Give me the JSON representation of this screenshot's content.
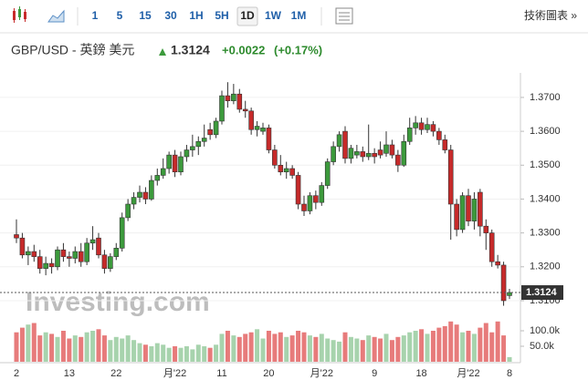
{
  "toolbar": {
    "intervals": [
      "1",
      "5",
      "15",
      "30",
      "1H",
      "5H",
      "1D",
      "1W",
      "1M"
    ],
    "selected": "1D",
    "advanced": "技術圖表 »"
  },
  "header": {
    "instrument": "GBP/USD - 英鎊 美元",
    "price": "1.3124",
    "change": "+0.0022",
    "change_pct": "(+0.17%)"
  },
  "chart_data": {
    "type": "candlestick",
    "watermark": "Investing.com",
    "up_color": "#3c9a3c",
    "down_color": "#c62a2a",
    "up_volume_color": "#a7d3ad",
    "down_volume_color": "#e77b7b",
    "categories": [
      "2",
      null,
      null,
      null,
      null,
      null,
      null,
      null,
      null,
      "13",
      null,
      null,
      null,
      null,
      null,
      null,
      null,
      "22",
      null,
      null,
      null,
      null,
      null,
      null,
      null,
      null,
      null,
      "月'22",
      null,
      null,
      null,
      null,
      null,
      null,
      null,
      "11",
      null,
      null,
      null,
      null,
      null,
      null,
      null,
      "20",
      null,
      null,
      null,
      null,
      null,
      null,
      null,
      null,
      "月'22",
      null,
      null,
      null,
      null,
      null,
      null,
      null,
      null,
      "9",
      null,
      null,
      null,
      null,
      null,
      null,
      null,
      "18",
      null,
      null,
      null,
      null,
      null,
      null,
      null,
      "月'22",
      null,
      null,
      null,
      null,
      null,
      null,
      "8"
    ],
    "open": [
      1.3295,
      1.3285,
      1.3235,
      1.3245,
      1.323,
      1.3195,
      1.321,
      1.32,
      1.325,
      1.323,
      1.3225,
      1.3245,
      1.3215,
      1.327,
      1.3285,
      1.3235,
      1.3195,
      1.323,
      1.3255,
      1.3345,
      1.3385,
      1.3405,
      1.342,
      1.34,
      1.3455,
      1.347,
      1.349,
      1.353,
      1.348,
      1.3525,
      1.3545,
      1.3555,
      1.357,
      1.3605,
      1.359,
      1.363,
      1.3705,
      1.369,
      1.371,
      1.3665,
      1.366,
      1.3605,
      1.36,
      1.361,
      1.3545,
      1.35,
      1.348,
      1.349,
      1.347,
      1.3385,
      1.3365,
      1.341,
      1.339,
      1.344,
      1.351,
      1.3555,
      1.36,
      1.352,
      1.353,
      1.354,
      1.3525,
      1.3535,
      1.3545,
      1.3535,
      1.356,
      1.353,
      1.35,
      1.357,
      1.361,
      1.3625,
      1.3605,
      1.362,
      1.36,
      1.3575,
      1.3545,
      1.3385,
      1.331,
      1.341,
      1.3335,
      1.342,
      1.332,
      1.33,
      1.3215,
      1.3205,
      1.3115
    ],
    "high": [
      1.334,
      1.33,
      1.326,
      1.3265,
      1.325,
      1.323,
      1.3225,
      1.326,
      1.327,
      1.3245,
      1.326,
      1.327,
      1.3285,
      1.332,
      1.33,
      1.325,
      1.324,
      1.327,
      1.336,
      1.34,
      1.342,
      1.344,
      1.3435,
      1.347,
      1.349,
      1.352,
      1.354,
      1.3545,
      1.354,
      1.356,
      1.359,
      1.3585,
      1.362,
      1.3625,
      1.364,
      1.372,
      1.3745,
      1.374,
      1.3725,
      1.369,
      1.367,
      1.363,
      1.3625,
      1.362,
      1.356,
      1.353,
      1.351,
      1.35,
      1.348,
      1.341,
      1.342,
      1.3425,
      1.345,
      1.352,
      1.357,
      1.36,
      1.3615,
      1.356,
      1.356,
      1.3555,
      1.362,
      1.355,
      1.357,
      1.36,
      1.3575,
      1.3545,
      1.359,
      1.364,
      1.3645,
      1.364,
      1.364,
      1.363,
      1.361,
      1.359,
      1.356,
      1.34,
      1.342,
      1.343,
      1.342,
      1.343,
      1.334,
      1.331,
      1.3235,
      1.3215,
      1.3135
    ],
    "low": [
      1.327,
      1.3225,
      1.3205,
      1.3215,
      1.318,
      1.3175,
      1.318,
      1.319,
      1.3215,
      1.32,
      1.321,
      1.32,
      1.3205,
      1.325,
      1.3225,
      1.318,
      1.3185,
      1.322,
      1.3245,
      1.3335,
      1.337,
      1.339,
      1.3385,
      1.3395,
      1.344,
      1.346,
      1.3475,
      1.3465,
      1.347,
      1.351,
      1.3525,
      1.353,
      1.3555,
      1.3575,
      1.358,
      1.362,
      1.367,
      1.368,
      1.3655,
      1.364,
      1.359,
      1.3585,
      1.359,
      1.3535,
      1.349,
      1.347,
      1.346,
      1.346,
      1.337,
      1.335,
      1.3355,
      1.337,
      1.338,
      1.343,
      1.35,
      1.354,
      1.3505,
      1.3505,
      1.352,
      1.351,
      1.3515,
      1.3505,
      1.352,
      1.3525,
      1.352,
      1.348,
      1.3495,
      1.356,
      1.359,
      1.359,
      1.3595,
      1.3585,
      1.356,
      1.3535,
      1.328,
      1.329,
      1.33,
      1.332,
      1.331,
      1.329,
      1.325,
      1.32,
      1.3195,
      1.3085,
      1.3105
    ],
    "close": [
      1.3285,
      1.3235,
      1.3245,
      1.323,
      1.3195,
      1.321,
      1.32,
      1.325,
      1.323,
      1.3225,
      1.3245,
      1.3215,
      1.327,
      1.328,
      1.3235,
      1.3195,
      1.323,
      1.3255,
      1.3345,
      1.3385,
      1.3405,
      1.342,
      1.34,
      1.3455,
      1.347,
      1.349,
      1.353,
      1.348,
      1.3525,
      1.3545,
      1.3555,
      1.357,
      1.358,
      1.359,
      1.363,
      1.3705,
      1.369,
      1.371,
      1.3665,
      1.366,
      1.3605,
      1.3615,
      1.361,
      1.3545,
      1.35,
      1.348,
      1.349,
      1.347,
      1.3385,
      1.3365,
      1.341,
      1.339,
      1.344,
      1.351,
      1.3555,
      1.359,
      1.352,
      1.355,
      1.354,
      1.3525,
      1.3535,
      1.3525,
      1.353,
      1.356,
      1.353,
      1.35,
      1.357,
      1.361,
      1.3625,
      1.3605,
      1.362,
      1.36,
      1.3575,
      1.3545,
      1.3385,
      1.331,
      1.341,
      1.3335,
      1.34,
      1.332,
      1.33,
      1.3215,
      1.3205,
      1.31,
      1.3124
    ],
    "volume": [
      95000,
      110000,
      120000,
      125000,
      85000,
      95000,
      90000,
      80000,
      100000,
      75000,
      85000,
      80000,
      95000,
      100000,
      105000,
      85000,
      70000,
      80000,
      75000,
      85000,
      70000,
      60000,
      55000,
      50000,
      60000,
      55000,
      45000,
      50000,
      45000,
      50000,
      40000,
      55000,
      50000,
      45000,
      55000,
      90000,
      100000,
      85000,
      80000,
      90000,
      95000,
      105000,
      75000,
      100000,
      90000,
      95000,
      80000,
      85000,
      100000,
      95000,
      85000,
      80000,
      90000,
      75000,
      70000,
      65000,
      95000,
      80000,
      75000,
      70000,
      85000,
      80000,
      75000,
      90000,
      70000,
      80000,
      85000,
      95000,
      100000,
      105000,
      90000,
      100000,
      110000,
      115000,
      130000,
      120000,
      95000,
      100000,
      90000,
      110000,
      125000,
      95000,
      130000,
      85000,
      15000
    ],
    "ylim": [
      1.3073,
      1.3759
    ],
    "yticks": [
      {
        "value": 1.31,
        "label": "1.3100"
      },
      {
        "value": 1.32,
        "label": "1.3200"
      },
      {
        "value": 1.33,
        "label": "1.3300"
      },
      {
        "value": 1.34,
        "label": "1.3400"
      },
      {
        "value": 1.35,
        "label": "1.3500"
      },
      {
        "value": 1.36,
        "label": "1.3600"
      },
      {
        "value": 1.37,
        "label": "1.3700"
      }
    ],
    "y2lim": [
      0,
      150000
    ],
    "y2ticks": [
      {
        "value": 50000,
        "label": "50.0k"
      },
      {
        "value": 100000,
        "label": "100.0k"
      }
    ],
    "grid": true
  }
}
